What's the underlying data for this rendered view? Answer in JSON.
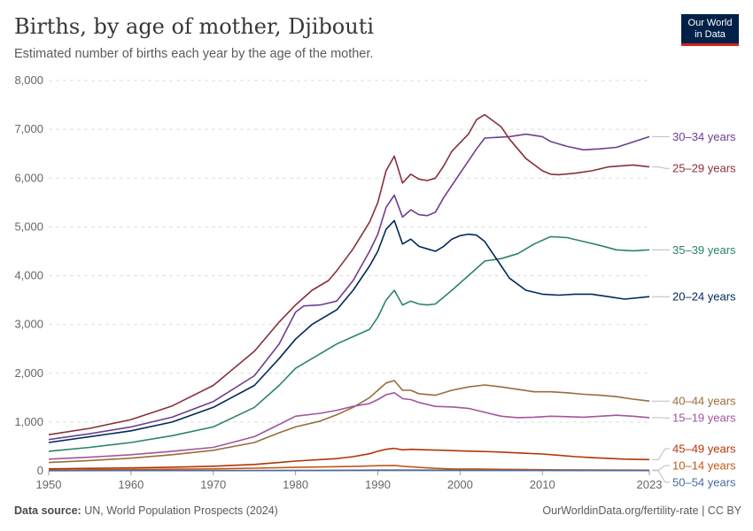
{
  "header": {
    "title": "Births, by age of mother, Djibouti",
    "subtitle": "Estimated number of births each year by the age of the mother."
  },
  "logo": {
    "line1": "Our World",
    "line2": "in Data"
  },
  "footer": {
    "source_label": "Data source:",
    "source_text": "UN, World Population Prospects (2024)",
    "right": "OurWorldinData.org/fertility-rate | CC BY"
  },
  "colors": {
    "30-34": "#6d3e91",
    "25-29": "#883039",
    "35-39": "#2c8465",
    "20-24": "#00295b",
    "40-44": "#996d39",
    "15-19": "#a2559c",
    "45-49": "#b13507",
    "10-14": "#c05917",
    "50-54": "#4c6a9c",
    "grid": "#dddddd",
    "axis": "#999999"
  },
  "chart_data": {
    "type": "line",
    "xlim": [
      1950,
      2023
    ],
    "ylim": [
      0,
      8000
    ],
    "x_ticks": [
      "1950",
      "1960",
      "1970",
      "1980",
      "1990",
      "2000",
      "2010",
      "2023"
    ],
    "y_ticks": [
      "0",
      "1,000",
      "2,000",
      "3,000",
      "4,000",
      "5,000",
      "6,000",
      "7,000",
      "8,000"
    ],
    "grid": "horizontal-dashed",
    "legend": "right-inline",
    "series": [
      {
        "key": "30-34",
        "name": "30–34 years",
        "label_y": 6850,
        "points": [
          [
            1950,
            640
          ],
          [
            1955,
            760
          ],
          [
            1960,
            900
          ],
          [
            1965,
            1100
          ],
          [
            1970,
            1420
          ],
          [
            1975,
            1950
          ],
          [
            1978,
            2600
          ],
          [
            1980,
            3250
          ],
          [
            1981,
            3380
          ],
          [
            1983,
            3400
          ],
          [
            1985,
            3480
          ],
          [
            1987,
            3900
          ],
          [
            1989,
            4500
          ],
          [
            1990,
            4850
          ],
          [
            1991,
            5400
          ],
          [
            1992,
            5650
          ],
          [
            1993,
            5200
          ],
          [
            1994,
            5350
          ],
          [
            1995,
            5250
          ],
          [
            1996,
            5230
          ],
          [
            1997,
            5300
          ],
          [
            1998,
            5600
          ],
          [
            2000,
            6100
          ],
          [
            2002,
            6600
          ],
          [
            2003,
            6820
          ],
          [
            2005,
            6840
          ],
          [
            2006,
            6850
          ],
          [
            2008,
            6900
          ],
          [
            2010,
            6850
          ],
          [
            2011,
            6750
          ],
          [
            2013,
            6650
          ],
          [
            2015,
            6580
          ],
          [
            2017,
            6600
          ],
          [
            2019,
            6630
          ],
          [
            2021,
            6740
          ],
          [
            2023,
            6850
          ]
        ]
      },
      {
        "key": "25-29",
        "name": "25–29 years",
        "label_y": 6200,
        "points": [
          [
            1950,
            740
          ],
          [
            1955,
            870
          ],
          [
            1960,
            1050
          ],
          [
            1965,
            1330
          ],
          [
            1970,
            1750
          ],
          [
            1975,
            2450
          ],
          [
            1978,
            3050
          ],
          [
            1980,
            3400
          ],
          [
            1982,
            3700
          ],
          [
            1984,
            3900
          ],
          [
            1985,
            4100
          ],
          [
            1987,
            4550
          ],
          [
            1989,
            5100
          ],
          [
            1990,
            5500
          ],
          [
            1991,
            6150
          ],
          [
            1992,
            6450
          ],
          [
            1993,
            5900
          ],
          [
            1994,
            6080
          ],
          [
            1995,
            5980
          ],
          [
            1996,
            5950
          ],
          [
            1997,
            6000
          ],
          [
            1998,
            6250
          ],
          [
            1999,
            6550
          ],
          [
            2001,
            6900
          ],
          [
            2002,
            7200
          ],
          [
            2003,
            7300
          ],
          [
            2005,
            7050
          ],
          [
            2006,
            6800
          ],
          [
            2008,
            6400
          ],
          [
            2010,
            6150
          ],
          [
            2011,
            6080
          ],
          [
            2012,
            6070
          ],
          [
            2014,
            6100
          ],
          [
            2016,
            6150
          ],
          [
            2018,
            6230
          ],
          [
            2021,
            6270
          ],
          [
            2023,
            6230
          ]
        ]
      },
      {
        "key": "35-39",
        "name": "35–39 years",
        "label_y": 4530,
        "points": [
          [
            1950,
            400
          ],
          [
            1955,
            480
          ],
          [
            1960,
            580
          ],
          [
            1965,
            720
          ],
          [
            1970,
            900
          ],
          [
            1975,
            1300
          ],
          [
            1978,
            1750
          ],
          [
            1980,
            2100
          ],
          [
            1983,
            2400
          ],
          [
            1985,
            2600
          ],
          [
            1987,
            2750
          ],
          [
            1989,
            2900
          ],
          [
            1990,
            3150
          ],
          [
            1991,
            3500
          ],
          [
            1992,
            3700
          ],
          [
            1993,
            3400
          ],
          [
            1994,
            3480
          ],
          [
            1995,
            3420
          ],
          [
            1996,
            3400
          ],
          [
            1997,
            3420
          ],
          [
            1999,
            3700
          ],
          [
            2001,
            4000
          ],
          [
            2003,
            4300
          ],
          [
            2005,
            4350
          ],
          [
            2007,
            4450
          ],
          [
            2009,
            4650
          ],
          [
            2011,
            4800
          ],
          [
            2013,
            4780
          ],
          [
            2015,
            4700
          ],
          [
            2017,
            4620
          ],
          [
            2019,
            4530
          ],
          [
            2021,
            4510
          ],
          [
            2023,
            4530
          ]
        ]
      },
      {
        "key": "20-24",
        "name": "20–24 years",
        "label_y": 3570,
        "points": [
          [
            1950,
            580
          ],
          [
            1955,
            700
          ],
          [
            1960,
            820
          ],
          [
            1965,
            1000
          ],
          [
            1970,
            1300
          ],
          [
            1975,
            1750
          ],
          [
            1978,
            2300
          ],
          [
            1980,
            2700
          ],
          [
            1982,
            3000
          ],
          [
            1985,
            3300
          ],
          [
            1987,
            3700
          ],
          [
            1989,
            4200
          ],
          [
            1990,
            4500
          ],
          [
            1991,
            4950
          ],
          [
            1992,
            5130
          ],
          [
            1993,
            4650
          ],
          [
            1994,
            4750
          ],
          [
            1995,
            4600
          ],
          [
            1996,
            4550
          ],
          [
            1997,
            4500
          ],
          [
            1998,
            4600
          ],
          [
            1999,
            4750
          ],
          [
            2000,
            4820
          ],
          [
            2001,
            4850
          ],
          [
            2002,
            4830
          ],
          [
            2003,
            4700
          ],
          [
            2005,
            4200
          ],
          [
            2006,
            3950
          ],
          [
            2008,
            3700
          ],
          [
            2010,
            3620
          ],
          [
            2012,
            3600
          ],
          [
            2014,
            3620
          ],
          [
            2016,
            3620
          ],
          [
            2018,
            3570
          ],
          [
            2020,
            3520
          ],
          [
            2023,
            3570
          ]
        ]
      },
      {
        "key": "40-44",
        "name": "40–44 years",
        "label_y": 1430,
        "points": [
          [
            1950,
            170
          ],
          [
            1955,
            210
          ],
          [
            1960,
            260
          ],
          [
            1965,
            330
          ],
          [
            1970,
            420
          ],
          [
            1975,
            580
          ],
          [
            1978,
            780
          ],
          [
            1980,
            900
          ],
          [
            1983,
            1020
          ],
          [
            1985,
            1150
          ],
          [
            1987,
            1300
          ],
          [
            1989,
            1500
          ],
          [
            1990,
            1650
          ],
          [
            1991,
            1800
          ],
          [
            1992,
            1850
          ],
          [
            1993,
            1650
          ],
          [
            1994,
            1650
          ],
          [
            1995,
            1580
          ],
          [
            1997,
            1550
          ],
          [
            1999,
            1650
          ],
          [
            2001,
            1720
          ],
          [
            2003,
            1760
          ],
          [
            2005,
            1720
          ],
          [
            2007,
            1670
          ],
          [
            2009,
            1620
          ],
          [
            2011,
            1620
          ],
          [
            2013,
            1600
          ],
          [
            2015,
            1570
          ],
          [
            2017,
            1550
          ],
          [
            2019,
            1520
          ],
          [
            2021,
            1470
          ],
          [
            2023,
            1430
          ]
        ]
      },
      {
        "key": "15-19",
        "name": "15–19 years",
        "label_y": 1090,
        "points": [
          [
            1950,
            240
          ],
          [
            1955,
            280
          ],
          [
            1960,
            330
          ],
          [
            1965,
            400
          ],
          [
            1970,
            480
          ],
          [
            1975,
            700
          ],
          [
            1978,
            950
          ],
          [
            1980,
            1120
          ],
          [
            1983,
            1180
          ],
          [
            1985,
            1240
          ],
          [
            1987,
            1320
          ],
          [
            1989,
            1380
          ],
          [
            1990,
            1460
          ],
          [
            1991,
            1560
          ],
          [
            1992,
            1600
          ],
          [
            1993,
            1480
          ],
          [
            1994,
            1460
          ],
          [
            1995,
            1400
          ],
          [
            1997,
            1320
          ],
          [
            1999,
            1310
          ],
          [
            2001,
            1280
          ],
          [
            2003,
            1200
          ],
          [
            2005,
            1120
          ],
          [
            2007,
            1090
          ],
          [
            2009,
            1100
          ],
          [
            2011,
            1120
          ],
          [
            2013,
            1110
          ],
          [
            2015,
            1100
          ],
          [
            2017,
            1120
          ],
          [
            2019,
            1140
          ],
          [
            2021,
            1120
          ],
          [
            2023,
            1090
          ]
        ]
      },
      {
        "key": "45-49",
        "name": "45–49 years",
        "label_y": 230,
        "points": [
          [
            1950,
            40
          ],
          [
            1955,
            50
          ],
          [
            1960,
            60
          ],
          [
            1965,
            75
          ],
          [
            1970,
            95
          ],
          [
            1975,
            130
          ],
          [
            1978,
            170
          ],
          [
            1980,
            200
          ],
          [
            1983,
            230
          ],
          [
            1985,
            250
          ],
          [
            1987,
            290
          ],
          [
            1989,
            350
          ],
          [
            1990,
            400
          ],
          [
            1991,
            440
          ],
          [
            1992,
            460
          ],
          [
            1993,
            430
          ],
          [
            1994,
            440
          ],
          [
            1996,
            430
          ],
          [
            1998,
            420
          ],
          [
            2000,
            410
          ],
          [
            2002,
            400
          ],
          [
            2004,
            390
          ],
          [
            2006,
            375
          ],
          [
            2008,
            360
          ],
          [
            2010,
            345
          ],
          [
            2012,
            320
          ],
          [
            2014,
            290
          ],
          [
            2016,
            270
          ],
          [
            2018,
            255
          ],
          [
            2020,
            240
          ],
          [
            2023,
            230
          ]
        ]
      },
      {
        "key": "10-14",
        "name": "10–14 years",
        "label_y": 30,
        "points": [
          [
            1950,
            15
          ],
          [
            1960,
            25
          ],
          [
            1970,
            40
          ],
          [
            1975,
            55
          ],
          [
            1980,
            70
          ],
          [
            1985,
            85
          ],
          [
            1988,
            95
          ],
          [
            1990,
            105
          ],
          [
            1992,
            110
          ],
          [
            1993,
            95
          ],
          [
            1995,
            70
          ],
          [
            1997,
            50
          ],
          [
            1999,
            40
          ],
          [
            2002,
            38
          ],
          [
            2005,
            30
          ],
          [
            2008,
            25
          ],
          [
            2012,
            20
          ],
          [
            2016,
            16
          ],
          [
            2020,
            14
          ],
          [
            2023,
            12
          ]
        ]
      },
      {
        "key": "50-54",
        "name": "50–54 years",
        "label_y": 0,
        "points": [
          [
            1950,
            4
          ],
          [
            1970,
            6
          ],
          [
            1985,
            10
          ],
          [
            1990,
            14
          ],
          [
            1995,
            15
          ],
          [
            2000,
            13
          ],
          [
            2005,
            11
          ],
          [
            2010,
            9
          ],
          [
            2015,
            7
          ],
          [
            2023,
            6
          ]
        ]
      }
    ]
  }
}
